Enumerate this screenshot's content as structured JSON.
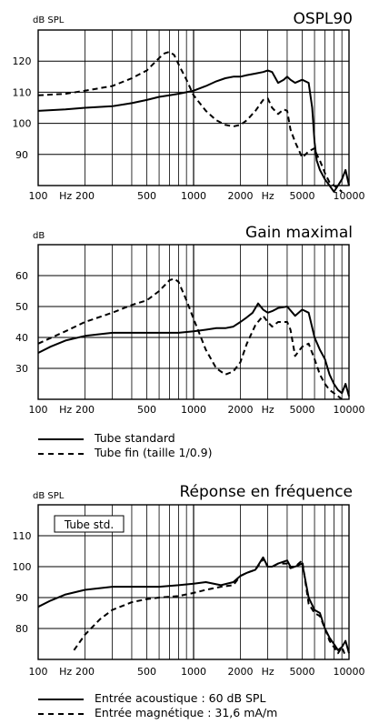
{
  "chart_data": [
    {
      "type": "line",
      "title": "OSPL90",
      "ylabel": "dB SPL",
      "xscale": "log",
      "xlim": [
        100,
        10000
      ],
      "ylim": [
        80,
        130
      ],
      "xticks": [
        "100",
        "200",
        "Hz",
        "500",
        "1000",
        "2000",
        "Hz",
        "5000",
        "10000"
      ],
      "yticks": [
        "120",
        "110",
        "100",
        "90"
      ],
      "grid": true,
      "series": [
        {
          "style": "solid",
          "x": [
            100,
            150,
            200,
            300,
            400,
            500,
            600,
            700,
            800,
            900,
            1000,
            1200,
            1400,
            1600,
            1800,
            2000,
            2200,
            2500,
            2800,
            3000,
            3200,
            3500,
            3800,
            4000,
            4200,
            4500,
            5000,
            5500,
            5800,
            6000,
            6200,
            6500,
            7000,
            7500,
            8000,
            8500,
            9000,
            9500,
            10000
          ],
          "y": [
            104,
            104.5,
            105,
            105.5,
            106.5,
            107.5,
            108.5,
            109,
            109.5,
            110,
            110.5,
            112,
            113.5,
            114.5,
            115,
            115,
            115.5,
            116,
            116.5,
            117,
            116.5,
            113,
            114,
            115,
            114,
            113,
            114,
            113,
            105,
            94,
            88,
            85,
            82,
            80,
            78,
            80,
            82,
            85,
            80
          ]
        },
        {
          "style": "dashed",
          "x": [
            100,
            150,
            200,
            300,
            400,
            500,
            600,
            650,
            700,
            750,
            800,
            900,
            1000,
            1200,
            1400,
            1600,
            1800,
            2000,
            2200,
            2500,
            2800,
            3000,
            3200,
            3500,
            3800,
            4000,
            4200,
            4500,
            5000,
            5500,
            6000,
            6200,
            6500,
            7000,
            7500,
            8000,
            8500,
            9000
          ],
          "y": [
            109,
            109.5,
            110.5,
            112,
            114.5,
            117,
            121,
            122.5,
            123,
            122,
            119,
            114,
            109,
            104,
            101,
            99.5,
            99,
            99.5,
            101,
            104,
            107.5,
            108,
            105,
            103,
            104.5,
            104,
            98,
            94,
            89,
            91,
            92,
            90,
            88,
            84,
            81,
            80,
            79,
            78
          ]
        }
      ]
    },
    {
      "type": "line",
      "title": "Gain maximal",
      "ylabel": "dB",
      "xscale": "log",
      "xlim": [
        100,
        10000
      ],
      "ylim": [
        20,
        70
      ],
      "xticks": [
        "100",
        "200",
        "Hz",
        "500",
        "1000",
        "2000",
        "Hz",
        "5000",
        "10000"
      ],
      "yticks": [
        "60",
        "50",
        "40",
        "30"
      ],
      "grid": true,
      "series": [
        {
          "name": "Tube standard",
          "style": "solid",
          "x": [
            100,
            120,
            150,
            200,
            300,
            400,
            500,
            600,
            700,
            800,
            1000,
            1200,
            1400,
            1600,
            1800,
            2000,
            2200,
            2400,
            2600,
            2800,
            3000,
            3200,
            3500,
            4000,
            4500,
            5000,
            5500,
            6000,
            6500,
            7000,
            7500,
            8000,
            8500,
            9000,
            9500,
            10000
          ],
          "y": [
            35,
            37,
            39,
            40.5,
            41.5,
            41.5,
            41.5,
            41.5,
            41.5,
            41.5,
            42,
            42.5,
            43,
            43,
            43.5,
            45,
            46.5,
            48,
            51,
            49,
            48,
            48.5,
            49.5,
            50,
            47,
            49,
            48,
            40,
            36,
            33,
            28,
            25,
            23,
            22,
            25,
            21
          ]
        },
        {
          "name": "Tube fin (taille 1/0.9)",
          "style": "dashed",
          "x": [
            100,
            150,
            200,
            300,
            400,
            500,
            600,
            700,
            750,
            800,
            900,
            1000,
            1200,
            1400,
            1600,
            1800,
            2000,
            2200,
            2500,
            2800,
            3000,
            3200,
            3500,
            4000,
            4200,
            4500,
            5000,
            5500,
            6000,
            6500,
            7000,
            7500,
            8000,
            8500,
            9000
          ],
          "y": [
            38,
            42,
            45,
            48,
            50.5,
            52,
            55,
            58.5,
            59,
            58,
            52,
            46,
            36,
            30,
            28,
            29,
            32,
            38,
            44,
            47,
            45,
            43.5,
            45,
            45,
            42.5,
            34,
            37,
            38,
            33,
            28,
            25,
            23,
            22,
            21,
            20
          ]
        }
      ]
    },
    {
      "type": "line",
      "title": "Réponse en fréquence",
      "ylabel": "dB SPL",
      "annotation": "Tube std.",
      "xscale": "log",
      "xlim": [
        100,
        10000
      ],
      "ylim": [
        70,
        120
      ],
      "xticks": [
        "100",
        "200",
        "Hz",
        "500",
        "1000",
        "2000",
        "Hz",
        "5000",
        "10000"
      ],
      "yticks": [
        "110",
        "100",
        "90",
        "80"
      ],
      "grid": true,
      "series": [
        {
          "name": "Entrée acoustique : 60 dB SPL",
          "style": "solid",
          "x": [
            100,
            120,
            150,
            200,
            300,
            400,
            500,
            600,
            800,
            1000,
            1200,
            1500,
            1800,
            2000,
            2200,
            2500,
            2800,
            3000,
            3200,
            3500,
            4000,
            4200,
            4500,
            5000,
            5500,
            6000,
            6500,
            7000,
            7500,
            8000,
            8500,
            9000,
            9500,
            10000
          ],
          "y": [
            87,
            89,
            91,
            92.5,
            93.5,
            93.5,
            93.5,
            93.5,
            94,
            94.5,
            95,
            94,
            95,
            97,
            98,
            99,
            103,
            100,
            100,
            101,
            102,
            100,
            100,
            101,
            90,
            86,
            85,
            80,
            77,
            75,
            73,
            74,
            76,
            72
          ]
        },
        {
          "name": "Entrée magnétique : 31,6 mA/m",
          "style": "dashed",
          "x": [
            170,
            200,
            250,
            300,
            400,
            500,
            600,
            800,
            1000,
            1200,
            1500,
            1800,
            2000,
            2200,
            2500,
            2800,
            3000,
            3200,
            3500,
            4000,
            4200,
            4500,
            5000,
            5500,
            6000,
            6500,
            7000,
            7500,
            8000,
            8500,
            9000,
            9500
          ],
          "y": [
            73,
            78,
            83,
            86,
            88.5,
            89.5,
            90,
            90.5,
            91.5,
            92.5,
            93.5,
            94,
            97,
            98,
            99,
            102.5,
            100,
            100,
            101,
            101,
            99.5,
            100,
            102,
            88,
            85,
            84,
            80,
            76,
            74,
            72,
            74,
            71
          ]
        }
      ]
    }
  ]
}
